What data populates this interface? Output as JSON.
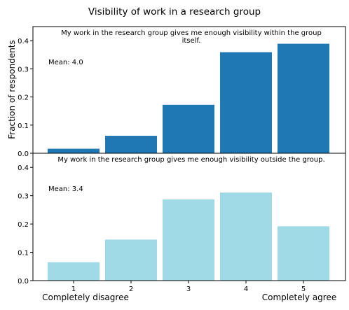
{
  "figure": {
    "title": "Visibility of work in a research group",
    "ylabel": "Fraction of respondents",
    "left_end_label": "Completely disagree",
    "right_end_label": "Completely agree"
  },
  "chart_data": [
    {
      "type": "bar",
      "title": "My work in the research group gives me enough visibility within the group itself.",
      "title_lines": [
        "My work in the research group gives me enough visibility within the group",
        "itself."
      ],
      "annotation": "Mean: 4.0",
      "categories": [
        "1",
        "2",
        "3",
        "4",
        "5"
      ],
      "values": [
        0.016,
        0.062,
        0.172,
        0.359,
        0.389
      ],
      "ylim": [
        0,
        0.45
      ],
      "yticks": [
        "0.0",
        "0.1",
        "0.2",
        "0.3",
        "0.4"
      ],
      "color": "#1f77b4",
      "grid": false
    },
    {
      "type": "bar",
      "title": "My work in the research group gives me enough visibility outside the group.",
      "title_lines": [
        "My work in the research group gives me enough visibility outside the group."
      ],
      "annotation": "Mean: 3.4",
      "categories": [
        "1",
        "2",
        "3",
        "4",
        "5"
      ],
      "values": [
        0.065,
        0.145,
        0.287,
        0.311,
        0.192
      ],
      "ylim": [
        0,
        0.45
      ],
      "yticks": [
        "0.0",
        "0.1",
        "0.2",
        "0.3",
        "0.4"
      ],
      "color": "#a0dae6",
      "grid": false
    }
  ]
}
